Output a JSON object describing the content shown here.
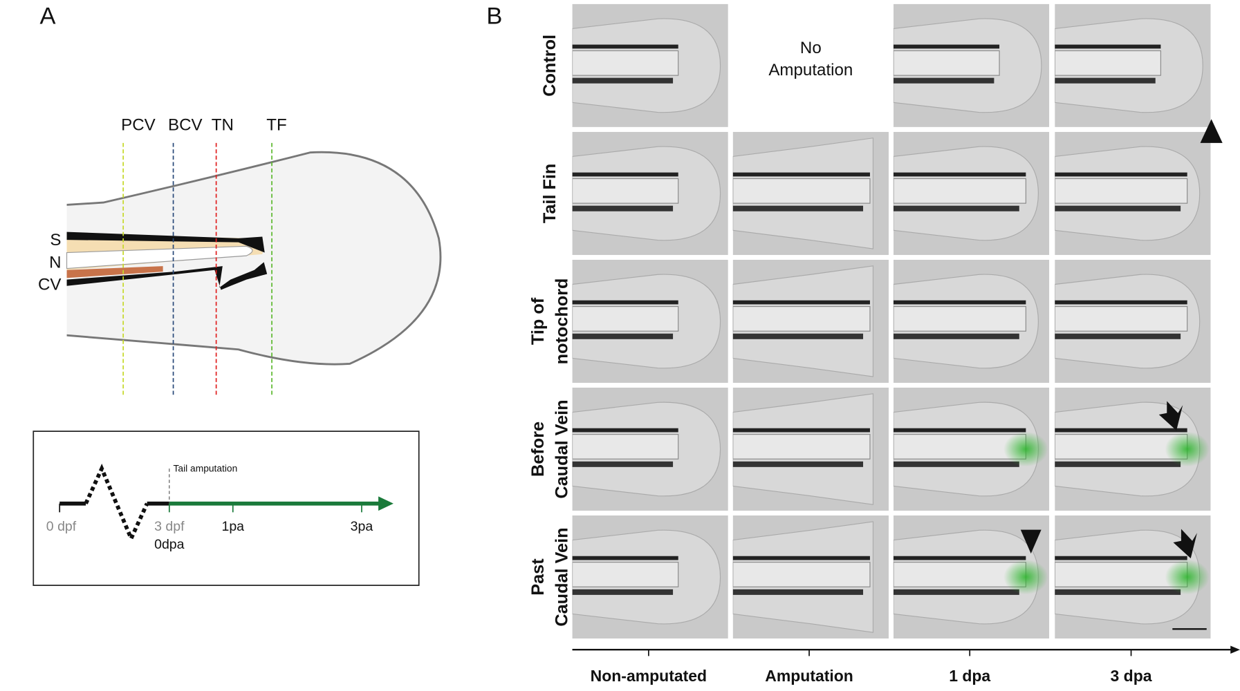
{
  "panel_a": {
    "label": "A",
    "schematic": {
      "lines": [
        "PCV",
        "BCV",
        "TN",
        "TF"
      ],
      "structures": [
        "S",
        "N",
        "CV"
      ]
    },
    "timeline": {
      "event": "Tail amputation",
      "ticks": [
        "0 dpf",
        "3 dpf",
        "1pa",
        "3pa"
      ],
      "sub_label": "0dpa"
    }
  },
  "panel_b": {
    "label": "B",
    "rows": [
      [
        "Control"
      ],
      [
        "Tail Fin"
      ],
      [
        "Tip of",
        "notochord"
      ],
      [
        "Before",
        "Caudal Vein"
      ],
      [
        "Past",
        "Caudal Vein"
      ]
    ],
    "columns": [
      "Non-amputated",
      "Amputation",
      "1 dpa",
      "3 dpa"
    ],
    "no_amputation": [
      "No",
      "Amputation"
    ]
  }
}
